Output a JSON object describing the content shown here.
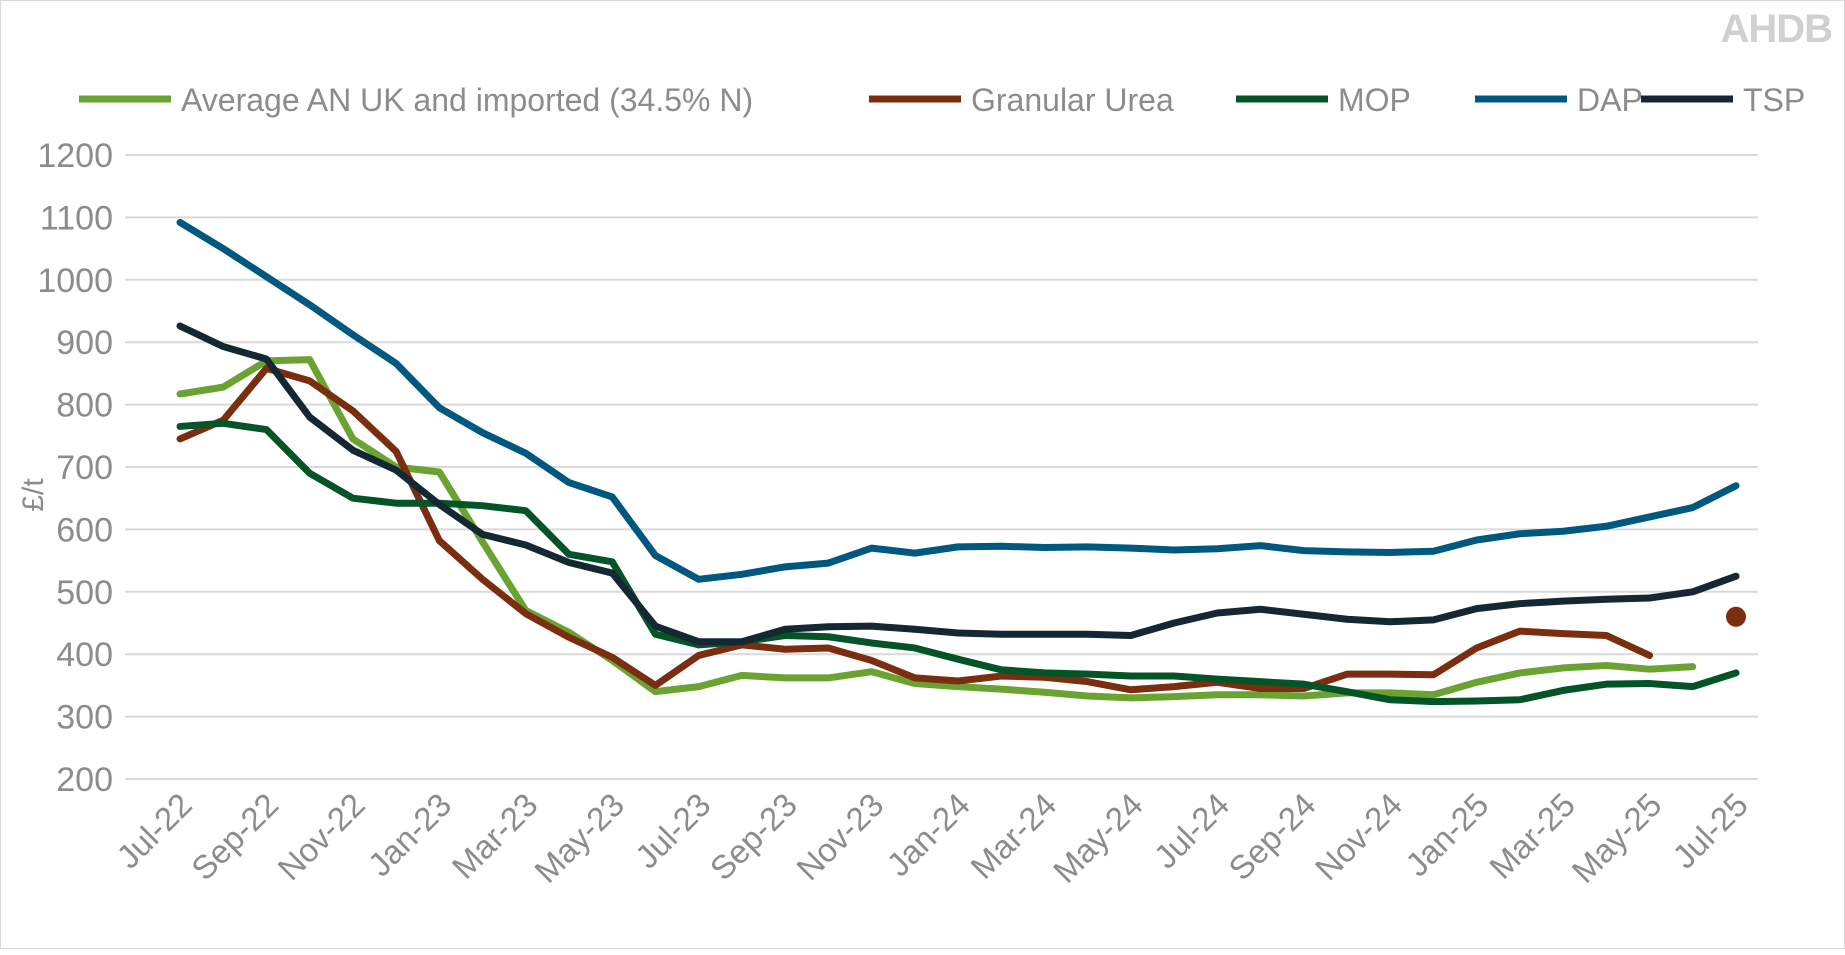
{
  "logo_text": "AHDB",
  "chart_data": {
    "type": "line",
    "title": "",
    "xlabel": "",
    "ylabel": "£/t",
    "ylim": [
      200,
      1200
    ],
    "yticks": [
      200,
      300,
      400,
      500,
      600,
      700,
      800,
      900,
      1000,
      1100,
      1200
    ],
    "grid": true,
    "legend_position": "top",
    "categories": [
      "Jul-22",
      "Aug-22",
      "Sep-22",
      "Oct-22",
      "Nov-22",
      "Dec-22",
      "Jan-23",
      "Feb-23",
      "Mar-23",
      "Apr-23",
      "May-23",
      "Jun-23",
      "Jul-23",
      "Aug-23",
      "Sep-23",
      "Oct-23",
      "Nov-23",
      "Dec-23",
      "Jan-24",
      "Feb-24",
      "Mar-24",
      "Apr-24",
      "May-24",
      "Jun-24",
      "Jul-24",
      "Aug-24",
      "Sep-24",
      "Oct-24",
      "Nov-24",
      "Dec-24",
      "Jan-25",
      "Feb-25",
      "Mar-25",
      "Apr-25",
      "May-25",
      "Jun-25",
      "Jul-25"
    ],
    "tick_labels": [
      "Jul-22",
      "Sep-22",
      "Nov-22",
      "Jan-23",
      "Mar-23",
      "May-23",
      "Jul-23",
      "Sep-23",
      "Nov-23",
      "Jan-24",
      "Mar-24",
      "May-24",
      "Jul-24",
      "Sep-24",
      "Nov-24",
      "Jan-25",
      "Mar-25",
      "May-25",
      "Jul-25"
    ],
    "series": [
      {
        "name": "Average AN UK and imported (34.5% N)",
        "color": "#6aa332",
        "values": [
          817,
          828,
          870,
          872,
          745,
          700,
          692,
          580,
          470,
          435,
          390,
          340,
          348,
          366,
          362,
          362,
          372,
          353,
          348,
          344,
          339,
          333,
          330,
          332,
          335,
          335,
          333,
          338,
          338,
          335,
          355,
          370,
          378,
          382,
          376,
          380,
          null
        ]
      },
      {
        "name": "Granular Urea",
        "color": "#7b2e0f",
        "values": [
          745,
          775,
          858,
          838,
          790,
          725,
          582,
          520,
          465,
          427,
          395,
          350,
          398,
          415,
          408,
          410,
          390,
          362,
          357,
          365,
          363,
          356,
          343,
          348,
          355,
          345,
          345,
          368,
          368,
          367,
          410,
          437,
          433,
          430,
          398,
          null,
          460
        ]
      },
      {
        "name": "MOP",
        "color": "#045428",
        "values": [
          765,
          770,
          760,
          690,
          650,
          642,
          642,
          638,
          630,
          560,
          548,
          432,
          415,
          420,
          430,
          428,
          418,
          410,
          392,
          375,
          370,
          368,
          365,
          365,
          360,
          356,
          352,
          340,
          327,
          324,
          325,
          327,
          342,
          352,
          353,
          348,
          370
        ]
      },
      {
        "name": "DAP",
        "color": "#005880",
        "values": [
          1092,
          1050,
          1005,
          960,
          912,
          866,
          795,
          755,
          722,
          675,
          652,
          558,
          520,
          528,
          540,
          546,
          570,
          562,
          572,
          573,
          571,
          572,
          570,
          567,
          569,
          574,
          566,
          564,
          563,
          565,
          583,
          593,
          597,
          605,
          620,
          635,
          670
        ]
      },
      {
        "name": "TSP",
        "color": "#142833",
        "values": [
          926,
          893,
          873,
          780,
          727,
          695,
          640,
          592,
          575,
          547,
          530,
          445,
          420,
          420,
          440,
          444,
          445,
          440,
          434,
          432,
          432,
          432,
          430,
          450,
          466,
          472,
          464,
          456,
          452,
          455,
          473,
          481,
          485,
          488,
          490,
          500,
          525
        ]
      }
    ]
  }
}
